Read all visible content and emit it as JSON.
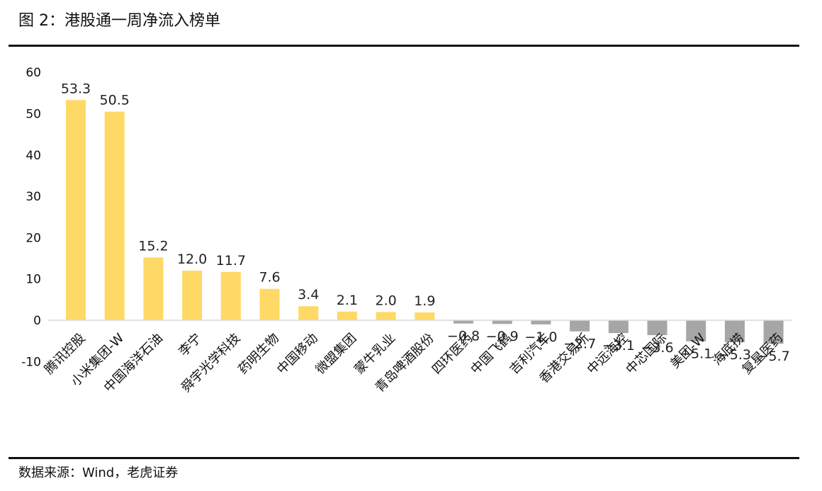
{
  "figure": {
    "title": "图 2：港股通一周净流入榜单",
    "source": "数据来源：Wind，老虎证券"
  },
  "colors": {
    "positive": "#FFD966",
    "negative": "#A6A6A6",
    "axis": "#D9D9D9"
  },
  "chart_data": {
    "type": "bar",
    "title": "",
    "xlabel": "",
    "ylabel": "",
    "ylim": [
      -10,
      60
    ],
    "yticks": [
      "60",
      "50",
      "40",
      "30",
      "20",
      "10",
      "0",
      "-10"
    ],
    "grid": false,
    "categories": [
      "腾讯控股",
      "小米集团-W",
      "中国海洋石油",
      "李宁",
      "舜宇光学科技",
      "药明生物",
      "中国移动",
      "微盟集团",
      "蒙牛乳业",
      "青岛啤酒股份",
      "四环医药",
      "中国飞鹤",
      "吉利汽车",
      "香港交易所",
      "中远海控",
      "中芯国际",
      "美团-W",
      "海底捞",
      "复星医药"
    ],
    "values": [
      53.3,
      50.5,
      15.2,
      12.0,
      11.7,
      7.6,
      3.4,
      2.1,
      2.0,
      1.9,
      -0.8,
      -0.9,
      -1.0,
      -2.7,
      -3.1,
      -3.6,
      -5.1,
      -5.3,
      -5.7
    ],
    "value_labels": [
      "53.3",
      "50.5",
      "15.2",
      "12.0",
      "11.7",
      "7.6",
      "3.4",
      "2.1",
      "2.0",
      "1.9",
      "−0.8",
      "−0.9",
      "−1.0",
      "−2.7",
      "−3.1",
      "−3.6",
      "−5.1",
      "−5.3",
      "−5.7"
    ]
  }
}
